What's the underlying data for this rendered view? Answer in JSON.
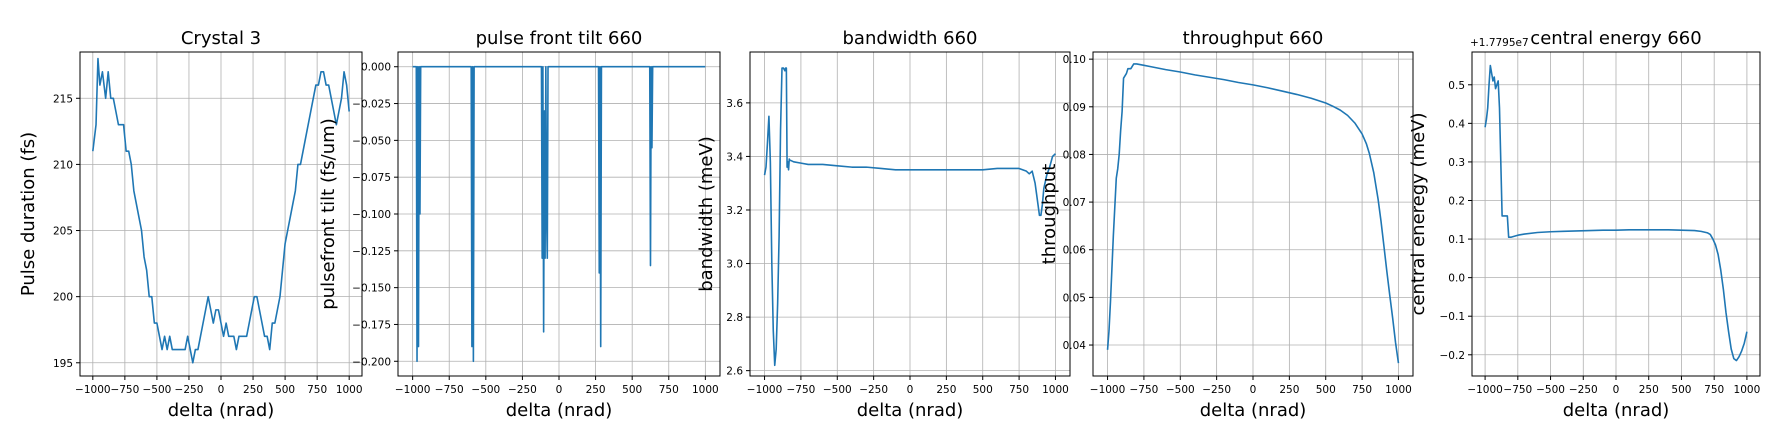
{
  "theme": {
    "line_color": "#1f77b4",
    "grid_color": "#b0b0b0"
  },
  "chart_data": [
    {
      "type": "line",
      "title": "Crystal 3",
      "xlabel": "delta (nrad)",
      "ylabel": "Pulse duration (fs)",
      "xlim": [
        -1100,
        1100
      ],
      "ylim": [
        194,
        218.5
      ],
      "grid": true,
      "xticks": [
        -1000,
        -750,
        -500,
        -250,
        0,
        250,
        500,
        750,
        1000
      ],
      "xtick_labels": [
        "−1000",
        "−750",
        "−500",
        "−250",
        "0",
        "250",
        "500",
        "750",
        "1000"
      ],
      "yticks": [
        195,
        200,
        205,
        210,
        215
      ],
      "ytick_labels": [
        "195",
        "200",
        "205",
        "210",
        "215"
      ],
      "series": [
        {
          "x": [
            -1000,
            -975,
            -960,
            -945,
            -925,
            -900,
            -880,
            -860,
            -840,
            -820,
            -800,
            -780,
            -760,
            -740,
            -720,
            -700,
            -680,
            -660,
            -640,
            -620,
            -600,
            -580,
            -560,
            -540,
            -520,
            -500,
            -480,
            -460,
            -440,
            -420,
            -400,
            -380,
            -360,
            -340,
            -320,
            -300,
            -280,
            -260,
            -240,
            -220,
            -200,
            -180,
            -160,
            -140,
            -120,
            -100,
            -80,
            -60,
            -40,
            -20,
            0,
            20,
            40,
            60,
            80,
            100,
            120,
            140,
            160,
            180,
            200,
            220,
            240,
            260,
            280,
            300,
            320,
            340,
            360,
            380,
            400,
            420,
            440,
            460,
            480,
            500,
            520,
            540,
            560,
            580,
            600,
            620,
            640,
            660,
            680,
            700,
            720,
            740,
            760,
            780,
            800,
            820,
            840,
            860,
            880,
            900,
            920,
            940,
            960,
            980,
            1000
          ],
          "y": [
            211,
            213,
            218,
            216,
            217,
            215,
            217,
            215,
            215,
            214,
            213,
            213,
            213,
            211,
            211,
            210,
            208,
            207,
            206,
            205,
            203,
            202,
            200,
            200,
            198,
            198,
            197,
            196,
            197,
            196,
            197,
            196,
            196,
            196,
            196,
            196,
            196,
            197,
            196,
            195,
            196,
            196,
            197,
            198,
            199,
            200,
            199,
            198,
            199,
            199,
            198,
            197,
            198,
            197,
            197,
            197,
            196,
            197,
            197,
            197,
            197,
            198,
            199,
            200,
            200,
            199,
            198,
            197,
            197,
            196,
            198,
            198,
            199,
            200,
            202,
            204,
            205,
            206,
            207,
            208,
            210,
            210,
            211,
            212,
            213,
            214,
            215,
            216,
            216,
            217,
            217,
            216,
            216,
            215,
            214,
            213,
            214,
            215,
            217,
            216,
            214
          ]
        }
      ]
    },
    {
      "type": "line",
      "title": "pulse front tilt 660",
      "xlabel": "delta (nrad)",
      "ylabel": "pulsefront tilt (fs/um)",
      "xlim": [
        -1100,
        1100
      ],
      "ylim": [
        -0.21,
        0.01
      ],
      "grid": true,
      "xticks": [
        -1000,
        -750,
        -500,
        -250,
        0,
        250,
        500,
        750,
        1000
      ],
      "xtick_labels": [
        "−1000",
        "−750",
        "−500",
        "−250",
        "0",
        "250",
        "500",
        "750",
        "1000"
      ],
      "yticks": [
        0,
        -0.025,
        -0.05,
        -0.075,
        -0.1,
        -0.125,
        -0.15,
        -0.175,
        -0.2
      ],
      "ytick_labels": [
        "0.000",
        "−0.025",
        "−0.050",
        "−0.075",
        "−0.100",
        "−0.125",
        "−0.150",
        "−0.175",
        "−0.200"
      ],
      "series": [
        {
          "x": [
            -1000,
            -975,
            -970,
            -965,
            -960,
            -955,
            -950,
            -945,
            -940,
            -600,
            -595,
            -590,
            -585,
            -580,
            -575,
            -120,
            -115,
            -110,
            -105,
            -100,
            -95,
            -90,
            -85,
            -80,
            -75,
            -70,
            270,
            275,
            280,
            285,
            290,
            295,
            620,
            625,
            630,
            635,
            640,
            1000
          ],
          "y": [
            0,
            0,
            -0.2,
            0,
            -0.19,
            0,
            -0.1,
            0,
            0,
            0,
            -0.19,
            0,
            -0.2,
            0,
            0,
            0,
            -0.13,
            0,
            -0.18,
            -0.03,
            -0.13,
            0,
            -0.1,
            -0.13,
            0,
            0,
            0,
            -0.14,
            0,
            -0.19,
            0,
            0,
            0,
            -0.135,
            0,
            -0.055,
            0,
            0
          ]
        }
      ]
    },
    {
      "type": "line",
      "title": "bandwidth 660",
      "xlabel": "delta (nrad)",
      "ylabel": "bandwidth (meV)",
      "xlim": [
        -1100,
        1100
      ],
      "ylim": [
        2.58,
        3.79
      ],
      "grid": true,
      "xticks": [
        -1000,
        -750,
        -500,
        -250,
        0,
        250,
        500,
        750,
        1000
      ],
      "xtick_labels": [
        "−1000",
        "−750",
        "−500",
        "−250",
        "0",
        "250",
        "500",
        "750",
        "1000"
      ],
      "yticks": [
        2.6,
        2.8,
        3.0,
        3.2,
        3.4,
        3.6
      ],
      "ytick_labels": [
        "2.6",
        "2.8",
        "3.0",
        "3.2",
        "3.4",
        "3.6"
      ],
      "series": [
        {
          "x": [
            -1000,
            -990,
            -980,
            -970,
            -960,
            -950,
            -940,
            -930,
            -920,
            -910,
            -900,
            -890,
            -880,
            -870,
            -860,
            -855,
            -850,
            -845,
            -840,
            -835,
            -830,
            -825,
            -820,
            -800,
            -750,
            -700,
            -600,
            -500,
            -400,
            -300,
            -200,
            -100,
            0,
            100,
            200,
            300,
            400,
            500,
            600,
            700,
            750,
            800,
            820,
            840,
            860,
            870,
            880,
            890,
            900,
            910,
            920,
            940,
            960,
            980,
            1000
          ],
          "y": [
            3.33,
            3.36,
            3.45,
            3.55,
            3.38,
            3.0,
            2.75,
            2.62,
            2.68,
            2.85,
            3.1,
            3.5,
            3.73,
            3.73,
            3.72,
            3.73,
            3.73,
            3.36,
            3.38,
            3.35,
            3.39,
            3.385,
            3.385,
            3.38,
            3.375,
            3.37,
            3.37,
            3.365,
            3.36,
            3.36,
            3.355,
            3.35,
            3.35,
            3.35,
            3.35,
            3.35,
            3.35,
            3.35,
            3.355,
            3.355,
            3.355,
            3.345,
            3.335,
            3.345,
            3.3,
            3.26,
            3.22,
            3.18,
            3.18,
            3.22,
            3.28,
            3.33,
            3.36,
            3.4,
            3.41
          ]
        }
      ]
    },
    {
      "type": "line",
      "title": "throughput 660",
      "xlabel": "delta (nrad)",
      "ylabel": "throughput",
      "xlim": [
        -1100,
        1100
      ],
      "ylim": [
        0.0335,
        0.1015
      ],
      "grid": true,
      "xticks": [
        -1000,
        -750,
        -500,
        -250,
        0,
        250,
        500,
        750,
        1000
      ],
      "xtick_labels": [
        "−1000",
        "−750",
        "−500",
        "−250",
        "0",
        "250",
        "500",
        "750",
        "1000"
      ],
      "yticks": [
        0.04,
        0.05,
        0.06,
        0.07,
        0.08,
        0.09,
        0.1
      ],
      "ytick_labels": [
        "0.04",
        "0.05",
        "0.06",
        "0.07",
        "0.08",
        "0.09",
        "0.10"
      ],
      "series": [
        {
          "x": [
            -1000,
            -990,
            -980,
            -970,
            -960,
            -950,
            -940,
            -930,
            -920,
            -910,
            -900,
            -890,
            -880,
            -870,
            -860,
            -850,
            -840,
            -830,
            -820,
            -800,
            -750,
            -700,
            -600,
            -500,
            -400,
            -300,
            -200,
            -100,
            0,
            100,
            200,
            300,
            400,
            500,
            550,
            600,
            650,
            700,
            750,
            780,
            800,
            830,
            860,
            880,
            900,
            920,
            940,
            960,
            980,
            1000
          ],
          "y": [
            0.039,
            0.043,
            0.049,
            0.056,
            0.063,
            0.069,
            0.075,
            0.077,
            0.08,
            0.085,
            0.089,
            0.096,
            0.0965,
            0.097,
            0.098,
            0.098,
            0.098,
            0.0985,
            0.099,
            0.099,
            0.0987,
            0.0984,
            0.0978,
            0.0973,
            0.0967,
            0.0962,
            0.0957,
            0.0951,
            0.0946,
            0.094,
            0.0933,
            0.0926,
            0.0918,
            0.0908,
            0.0901,
            0.0893,
            0.0882,
            0.0866,
            0.0843,
            0.0822,
            0.0802,
            0.0762,
            0.0706,
            0.066,
            0.0608,
            0.0555,
            0.0505,
            0.0457,
            0.0405,
            0.0362
          ]
        }
      ]
    },
    {
      "type": "line",
      "title": "central energy 660",
      "xlabel": "delta (nrad)",
      "ylabel": "central eneregy (meV)",
      "offset_text": "+1.7795e7",
      "xlim": [
        -1100,
        1100
      ],
      "ylim": [
        -0.255,
        0.585
      ],
      "grid": true,
      "xticks": [
        -1000,
        -750,
        -500,
        -250,
        0,
        250,
        500,
        750,
        1000
      ],
      "xtick_labels": [
        "−1000",
        "−750",
        "−500",
        "−250",
        "0",
        "250",
        "500",
        "750",
        "1000"
      ],
      "yticks": [
        -0.2,
        -0.1,
        0,
        0.1,
        0.2,
        0.3,
        0.4,
        0.5
      ],
      "ytick_labels": [
        "−0.2",
        "−0.1",
        "0.0",
        "0.1",
        "0.2",
        "0.3",
        "0.4",
        "0.5"
      ],
      "series": [
        {
          "x": [
            -1000,
            -990,
            -980,
            -970,
            -960,
            -950,
            -940,
            -930,
            -920,
            -910,
            -900,
            -890,
            -880,
            -870,
            -860,
            -850,
            -840,
            -830,
            -820,
            -800,
            -750,
            -700,
            -600,
            -500,
            -400,
            -300,
            -200,
            -100,
            0,
            100,
            200,
            300,
            400,
            500,
            600,
            650,
            700,
            720,
            740,
            760,
            780,
            800,
            820,
            840,
            860,
            880,
            900,
            920,
            940,
            960,
            980,
            1000
          ],
          "y": [
            0.39,
            0.41,
            0.44,
            0.5,
            0.55,
            0.53,
            0.51,
            0.52,
            0.49,
            0.5,
            0.51,
            0.44,
            0.3,
            0.16,
            0.16,
            0.16,
            0.16,
            0.16,
            0.105,
            0.105,
            0.11,
            0.113,
            0.117,
            0.119,
            0.12,
            0.121,
            0.122,
            0.123,
            0.123,
            0.124,
            0.124,
            0.124,
            0.124,
            0.123,
            0.122,
            0.12,
            0.116,
            0.112,
            0.1,
            0.085,
            0.06,
            0.02,
            -0.03,
            -0.09,
            -0.14,
            -0.185,
            -0.21,
            -0.215,
            -0.205,
            -0.19,
            -0.17,
            -0.14
          ]
        }
      ]
    }
  ]
}
